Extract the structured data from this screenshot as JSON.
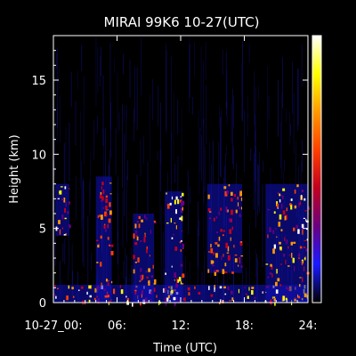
{
  "chart_data": {
    "type": "heatmap",
    "title": "MIRAI 99K6 10-27(UTC)",
    "xlabel": "Time (UTC)",
    "ylabel": "Height (km)",
    "xlim": [
      0,
      24
    ],
    "ylim": [
      0,
      18
    ],
    "x_ticks": [
      {
        "value": 0,
        "label": "10-27_00:"
      },
      {
        "value": 6,
        "label": "06:"
      },
      {
        "value": 12,
        "label": "12:"
      },
      {
        "value": 18,
        "label": "18:"
      },
      {
        "value": 24,
        "label": "24:"
      }
    ],
    "y_ticks": [
      {
        "value": 0,
        "label": "0"
      },
      {
        "value": 5,
        "label": "5"
      },
      {
        "value": 10,
        "label": "10"
      },
      {
        "value": 15,
        "label": "15"
      }
    ],
    "colorbar": {
      "orientation": "vertical",
      "position": "right",
      "colors": [
        "#000000",
        "#1a1aff",
        "#6a0080",
        "#c00020",
        "#ff4000",
        "#ff9900",
        "#ffff00",
        "#ffffff"
      ]
    },
    "background_color": "#000000",
    "noise_color": "#1a1acc",
    "features": [
      {
        "name": "low-level echoes",
        "x_range": [
          0,
          24
        ],
        "height_range": [
          0,
          1.2
        ],
        "intensity": "high"
      },
      {
        "name": "cloud layer",
        "x_range": [
          0.2,
          1.5
        ],
        "height_range": [
          4.5,
          8
        ],
        "intensity": "high"
      },
      {
        "name": "cloud layer",
        "x_range": [
          4.0,
          5.5
        ],
        "height_range": [
          0,
          8.5
        ],
        "intensity": "medium"
      },
      {
        "name": "cloud layer",
        "x_range": [
          7.5,
          9.5
        ],
        "height_range": [
          0,
          6
        ],
        "intensity": "medium"
      },
      {
        "name": "cloud layer",
        "x_range": [
          10.5,
          12.2
        ],
        "height_range": [
          0,
          7.5
        ],
        "intensity": "high"
      },
      {
        "name": "cloud layer",
        "x_range": [
          14.5,
          17.8
        ],
        "height_range": [
          2,
          8
        ],
        "intensity": "medium"
      },
      {
        "name": "cloud layer",
        "x_range": [
          20.0,
          24
        ],
        "height_range": [
          0,
          8
        ],
        "intensity": "high"
      }
    ]
  }
}
